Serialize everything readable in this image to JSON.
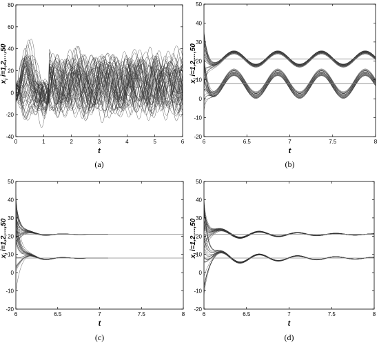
{
  "chart_data": [
    {
      "type": "line",
      "panel": "a",
      "caption": "(a)",
      "xlabel": "t",
      "ylabel": "x",
      "ylabel_sub": "i",
      "ylabel_suffix": " i=1,2,...,50",
      "xlim": [
        0,
        6
      ],
      "ylim": [
        -40,
        80
      ],
      "xticks": [
        0,
        1,
        2,
        3,
        4,
        5,
        6
      ],
      "yticks": [
        -40,
        -20,
        0,
        20,
        40,
        60,
        80
      ],
      "grid": false,
      "legend": "none",
      "series_count": 50,
      "behavior": "chaotic: initial spread between -35 and 60 during t=0-1, then irregular oscillations mostly between -15 and 40",
      "envelope": {
        "x": [
          0.1,
          0.3,
          0.5,
          1.0,
          1.5,
          2,
          3,
          4,
          5,
          6
        ],
        "min": [
          -10,
          -35,
          -30,
          -10,
          -25,
          -20,
          -20,
          -20,
          -15,
          -15
        ],
        "max": [
          10,
          50,
          60,
          30,
          40,
          40,
          40,
          38,
          40,
          40
        ]
      }
    },
    {
      "type": "line",
      "panel": "b",
      "caption": "(b)",
      "xlabel": "t",
      "ylabel": "x",
      "ylabel_sub": "i",
      "ylabel_suffix": " i=1,2,...,50",
      "xlim": [
        6,
        8
      ],
      "ylim": [
        -20,
        50
      ],
      "xticks": [
        6,
        6.5,
        7,
        7.5,
        8
      ],
      "xtick_labels": [
        "6",
        "6.5",
        "7",
        "7.5",
        "8"
      ],
      "yticks": [
        -20,
        -10,
        0,
        10,
        20,
        30,
        40,
        50
      ],
      "grid": false,
      "legend": "none",
      "reference_levels": [
        21,
        8
      ],
      "groups": [
        {
          "mean": 21,
          "amplitude": 3.5,
          "peaks_t": [
            6.35,
            6.85,
            7.35,
            7.88
          ],
          "band": 2
        },
        {
          "mean": 8,
          "amplitude": 6,
          "peaks_t": [
            6.35,
            6.85,
            7.35,
            7.88
          ],
          "band": 4
        }
      ]
    },
    {
      "type": "line",
      "panel": "c",
      "caption": "(c)",
      "xlabel": "t",
      "ylabel": "x",
      "ylabel_sub": "i",
      "ylabel_suffix": " i=1,2,...,50",
      "xlim": [
        6,
        8
      ],
      "ylim": [
        -20,
        50
      ],
      "xticks": [
        6,
        6.5,
        7,
        7.5,
        8
      ],
      "xtick_labels": [
        "6",
        "6.5",
        "7",
        "7.5",
        "8"
      ],
      "yticks": [
        -20,
        -10,
        0,
        10,
        20,
        30,
        40,
        50
      ],
      "grid": false,
      "legend": "none",
      "reference_levels": [
        21,
        8
      ],
      "line_end_t": 7.1,
      "groups": [
        {
          "mean": 21,
          "initial_spread": 12,
          "decay": "fast",
          "settle_t": 6.9
        },
        {
          "mean": 8,
          "initial_spread": 28,
          "decay": "fast",
          "settle_t": 6.9
        }
      ]
    },
    {
      "type": "line",
      "panel": "d",
      "caption": "(d)",
      "xlabel": "t",
      "ylabel": "x",
      "ylabel_sub": "i",
      "ylabel_suffix": " i=1,2,...,50",
      "xlim": [
        6,
        8
      ],
      "ylim": [
        -20,
        50
      ],
      "xticks": [
        6,
        6.5,
        7,
        7.5,
        8
      ],
      "xtick_labels": [
        "6",
        "6.5",
        "7",
        "7.5",
        "8"
      ],
      "yticks": [
        -20,
        -10,
        0,
        10,
        20,
        30,
        40,
        50
      ],
      "grid": false,
      "legend": "none",
      "reference_levels": [
        21,
        8
      ],
      "groups": [
        {
          "mean": 21,
          "initial_spread": 12,
          "decay": "slow",
          "peaks_t": [
            6.35,
            6.85,
            7.35
          ]
        },
        {
          "mean": 8,
          "initial_spread": 28,
          "decay": "slow",
          "peaks_t": [
            6.35,
            6.85,
            7.35
          ]
        }
      ]
    }
  ]
}
